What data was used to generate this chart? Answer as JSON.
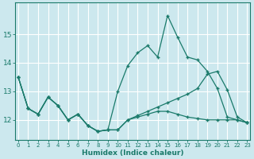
{
  "xlabel": "Humidex (Indice chaleur)",
  "ylabel": "",
  "background_color": "#cce8ee",
  "grid_color": "#b8d8e0",
  "line_color": "#1a7a6a",
  "x_values": [
    0,
    1,
    2,
    3,
    4,
    5,
    6,
    7,
    8,
    9,
    10,
    11,
    12,
    13,
    14,
    15,
    16,
    17,
    18,
    19,
    20,
    21,
    22,
    23
  ],
  "line1": [
    13.5,
    12.4,
    12.2,
    12.8,
    12.5,
    12.0,
    12.2,
    11.8,
    11.6,
    11.65,
    13.0,
    13.9,
    14.35,
    14.6,
    14.2,
    15.65,
    14.9,
    14.2,
    14.1,
    13.7,
    13.1,
    12.1,
    12.0,
    11.9
  ],
  "line2": [
    13.5,
    12.4,
    12.2,
    12.8,
    12.5,
    12.0,
    12.2,
    11.8,
    11.6,
    11.65,
    11.65,
    12.0,
    12.15,
    12.3,
    12.45,
    12.6,
    12.75,
    12.9,
    13.1,
    13.6,
    13.7,
    13.05,
    12.1,
    11.9
  ],
  "line3": [
    13.5,
    12.4,
    12.2,
    12.8,
    12.5,
    12.0,
    12.2,
    11.8,
    11.6,
    11.65,
    11.65,
    12.0,
    12.1,
    12.2,
    12.3,
    12.3,
    12.2,
    12.1,
    12.05,
    12.0,
    12.0,
    12.0,
    12.0,
    11.9
  ],
  "yticks": [
    12,
    13,
    14,
    15
  ],
  "xticks": [
    0,
    1,
    2,
    3,
    4,
    5,
    6,
    7,
    8,
    9,
    10,
    11,
    12,
    13,
    14,
    15,
    16,
    17,
    18,
    19,
    20,
    21,
    22,
    23
  ],
  "xlim": [
    -0.3,
    23.3
  ],
  "ylim": [
    11.3,
    16.1
  ]
}
